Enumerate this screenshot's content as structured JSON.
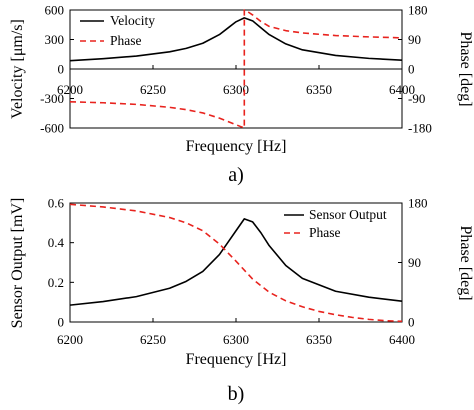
{
  "chart_data": [
    {
      "type": "line",
      "panel_label": "a)",
      "xlabel": "Frequency [Hz]",
      "ylabel_left": "Velocity [μm/s]",
      "ylabel_right": "Phase [deg]",
      "x_ticks": [
        "6200",
        "6250",
        "6300",
        "6350",
        "6400"
      ],
      "y_left_ticks": [
        "600",
        "300",
        "0",
        "-300",
        "-600"
      ],
      "y_right_ticks": [
        "180",
        "90",
        "0",
        "-90",
        "-180"
      ],
      "xlim": [
        6200,
        6400
      ],
      "ylim_left": [
        -600,
        600
      ],
      "ylim_right": [
        -180,
        180
      ],
      "legend_position": "top-left",
      "grid": false,
      "series": [
        {
          "name": "Velocity",
          "axis": "left",
          "style": "solid",
          "color": "#000000",
          "x": [
            6200,
            6220,
            6240,
            6260,
            6270,
            6280,
            6290,
            6295,
            6300,
            6305,
            6310,
            6315,
            6320,
            6330,
            6340,
            6360,
            6380,
            6400
          ],
          "y": [
            85,
            105,
            132,
            175,
            210,
            262,
            350,
            415,
            480,
            520,
            490,
            420,
            350,
            255,
            195,
            138,
            108,
            90
          ]
        },
        {
          "name": "Phase",
          "axis": "right",
          "style": "dashed",
          "color": "#e8231e",
          "x": [
            6200,
            6220,
            6240,
            6260,
            6270,
            6280,
            6290,
            6295,
            6300,
            6303,
            6305,
            6305.01,
            6307,
            6310,
            6315,
            6320,
            6330,
            6340,
            6360,
            6380,
            6400
          ],
          "y": [
            -100,
            -103,
            -108,
            -117,
            -124,
            -134,
            -150,
            -160,
            -170,
            -176,
            -180,
            180,
            175,
            165,
            145,
            130,
            117,
            110,
            102,
            98,
            95
          ]
        }
      ]
    },
    {
      "type": "line",
      "panel_label": "b)",
      "xlabel": "Frequency [Hz]",
      "ylabel_left": "Sensor Output [mV]",
      "ylabel_right": "Phase [deg]",
      "x_ticks": [
        "6200",
        "6250",
        "6300",
        "6350",
        "6400"
      ],
      "y_left_ticks": [
        "0.6",
        "0.4",
        "0.2",
        "0"
      ],
      "y_right_ticks": [
        "180",
        "90",
        "0"
      ],
      "xlim": [
        6200,
        6400
      ],
      "ylim_left": [
        0,
        0.6
      ],
      "ylim_right": [
        0,
        180
      ],
      "legend_position": "top-right",
      "grid": false,
      "series": [
        {
          "name": "Sensor Output",
          "axis": "left",
          "style": "solid",
          "color": "#000000",
          "x": [
            6200,
            6220,
            6240,
            6260,
            6270,
            6280,
            6290,
            6295,
            6300,
            6305,
            6310,
            6315,
            6320,
            6330,
            6340,
            6360,
            6380,
            6400
          ],
          "y": [
            0.085,
            0.103,
            0.128,
            0.17,
            0.205,
            0.255,
            0.34,
            0.4,
            0.46,
            0.52,
            0.505,
            0.45,
            0.385,
            0.285,
            0.22,
            0.155,
            0.125,
            0.105
          ]
        },
        {
          "name": "Phase",
          "axis": "right",
          "style": "dashed",
          "color": "#e8231e",
          "x": [
            6200,
            6220,
            6240,
            6260,
            6270,
            6280,
            6290,
            6300,
            6310,
            6320,
            6330,
            6340,
            6350,
            6360,
            6370,
            6380,
            6390,
            6400
          ],
          "y": [
            178,
            174,
            168,
            158,
            150,
            138,
            118,
            92,
            65,
            45,
            32,
            23,
            16,
            11,
            7,
            4,
            2,
            1
          ]
        }
      ]
    }
  ]
}
